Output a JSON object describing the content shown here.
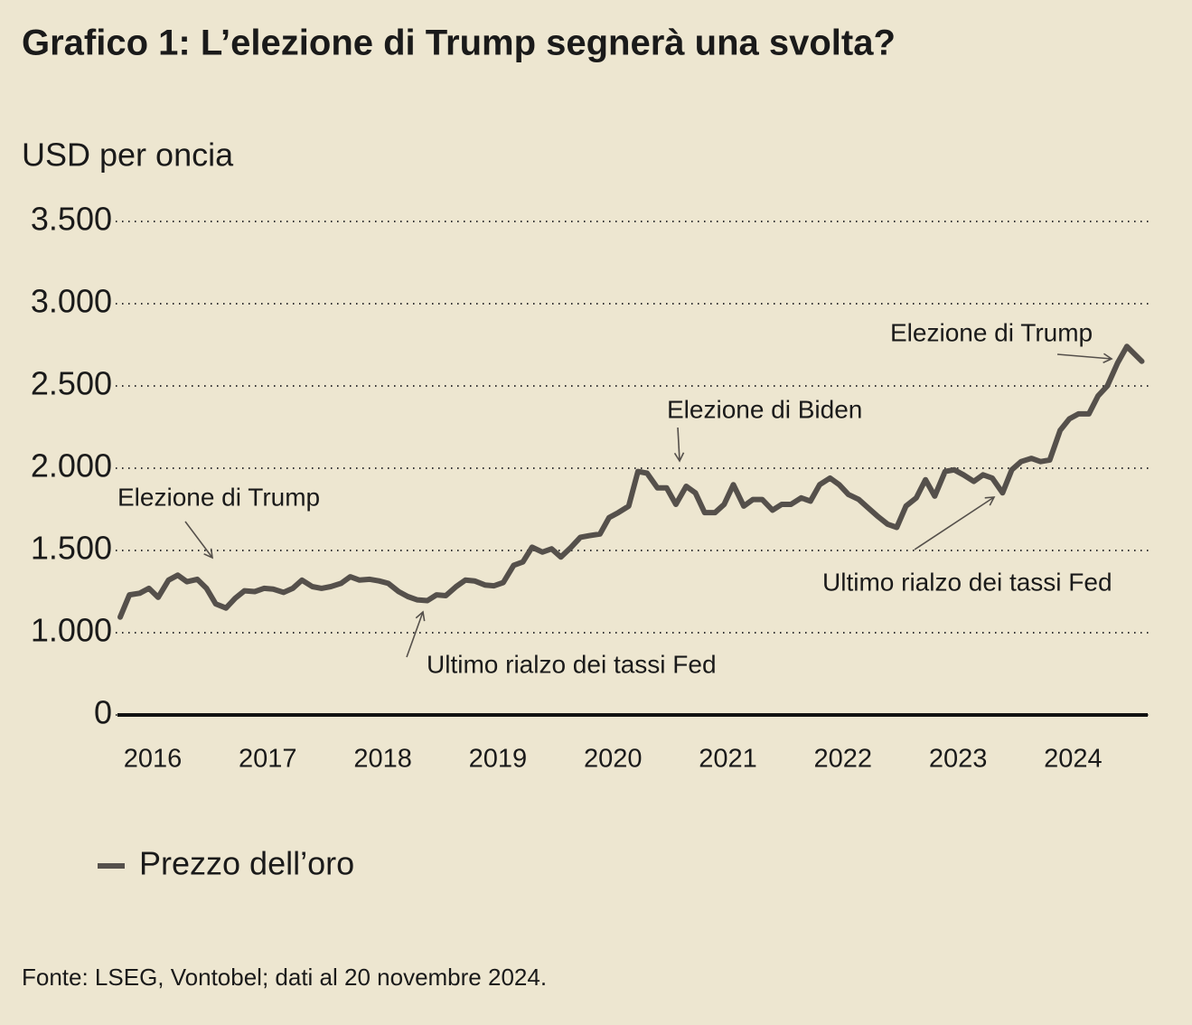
{
  "chart_data": {
    "type": "line",
    "title": "Grafico 1: L’elezione di Trump segnerà una svolta?",
    "y_label": "USD per oncia",
    "source": "Fonte: LSEG, Vontobel; dati al 20 novembre 2024.",
    "annotations": [
      "Elezione di Trump",
      "Ultimo rialzo dei tassi Fed",
      "Elezione di Biden",
      "Elezione di Trump",
      "Ultimo rialzo dei tassi Fed"
    ],
    "x": [
      2016.0,
      2016.08,
      2016.17,
      2016.25,
      2016.33,
      2016.42,
      2016.5,
      2016.58,
      2016.67,
      2016.75,
      2016.83,
      2016.92,
      2017.0,
      2017.08,
      2017.17,
      2017.25,
      2017.33,
      2017.42,
      2017.5,
      2017.58,
      2017.67,
      2017.75,
      2017.83,
      2017.92,
      2018.0,
      2018.08,
      2018.17,
      2018.25,
      2018.33,
      2018.42,
      2018.5,
      2018.58,
      2018.67,
      2018.75,
      2018.83,
      2018.92,
      2019.0,
      2019.08,
      2019.17,
      2019.25,
      2019.33,
      2019.42,
      2019.5,
      2019.58,
      2019.67,
      2019.75,
      2019.83,
      2019.92,
      2020.0,
      2020.08,
      2020.17,
      2020.25,
      2020.33,
      2020.42,
      2020.5,
      2020.58,
      2020.67,
      2020.75,
      2020.83,
      2020.92,
      2021.0,
      2021.08,
      2021.17,
      2021.25,
      2021.33,
      2021.42,
      2021.5,
      2021.58,
      2021.67,
      2021.75,
      2021.83,
      2021.92,
      2022.0,
      2022.08,
      2022.17,
      2022.25,
      2022.33,
      2022.42,
      2022.5,
      2022.58,
      2022.67,
      2022.75,
      2022.83,
      2022.92,
      2023.0,
      2023.08,
      2023.17,
      2023.25,
      2023.33,
      2023.42,
      2023.5,
      2023.58,
      2023.67,
      2023.75,
      2023.83,
      2023.92,
      2024.0,
      2024.08,
      2024.17,
      2024.25,
      2024.33,
      2024.42,
      2024.5,
      2024.58,
      2024.67,
      2024.75,
      2024.88
    ],
    "series": [
      {
        "name": "Prezzo dell’oro",
        "color": "#55504b",
        "values": [
          1095,
          1230,
          1240,
          1270,
          1215,
          1320,
          1350,
          1310,
          1325,
          1270,
          1175,
          1150,
          1210,
          1255,
          1250,
          1270,
          1265,
          1245,
          1270,
          1320,
          1280,
          1270,
          1280,
          1300,
          1340,
          1320,
          1325,
          1315,
          1300,
          1250,
          1220,
          1200,
          1195,
          1230,
          1225,
          1280,
          1320,
          1315,
          1290,
          1285,
          1305,
          1410,
          1430,
          1520,
          1490,
          1510,
          1460,
          1520,
          1580,
          1590,
          1600,
          1700,
          1730,
          1770,
          1980,
          1970,
          1880,
          1880,
          1780,
          1890,
          1850,
          1730,
          1730,
          1780,
          1900,
          1770,
          1810,
          1810,
          1745,
          1780,
          1780,
          1820,
          1800,
          1900,
          1940,
          1900,
          1840,
          1810,
          1760,
          1710,
          1660,
          1640,
          1770,
          1820,
          1930,
          1830,
          1980,
          1990,
          1960,
          1920,
          1960,
          1940,
          1850,
          1990,
          2040,
          2060,
          2040,
          2050,
          2230,
          2300,
          2330,
          2330,
          2440,
          2500,
          2640,
          2740,
          2650
        ]
      }
    ],
    "xlim": [
      2016,
      2024.9
    ],
    "xticks": [
      2016,
      2017,
      2018,
      2019,
      2020,
      2021,
      2022,
      2023,
      2024
    ],
    "ylim": [
      500,
      3500
    ],
    "axis_break": true,
    "yticks": [
      {
        "value": 0,
        "label": "0"
      },
      {
        "value": 1000,
        "label": "1.000"
      },
      {
        "value": 1500,
        "label": "1.500"
      },
      {
        "value": 2000,
        "label": "2.000"
      },
      {
        "value": 2500,
        "label": "2.500"
      },
      {
        "value": 3000,
        "label": "3.000"
      },
      {
        "value": 3500,
        "label": "3.500"
      }
    ],
    "grid": true
  }
}
